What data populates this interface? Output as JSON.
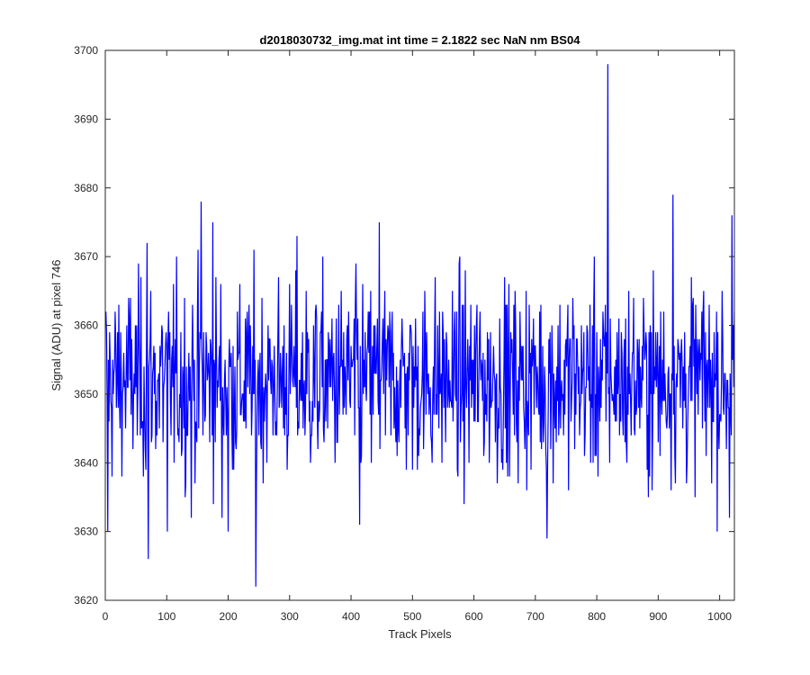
{
  "chart_data": {
    "type": "line",
    "title": "d2018030732_img.mat int time = 2.1822 sec  NaN nm BS04",
    "xlabel": "Track Pixels",
    "ylabel": "Signal (ADU) at pixel 746",
    "xlim": [
      0,
      1024
    ],
    "ylim": [
      3620,
      3700
    ],
    "xticks": [
      0,
      100,
      200,
      300,
      400,
      500,
      600,
      700,
      800,
      900,
      1000
    ],
    "yticks": [
      3620,
      3630,
      3640,
      3650,
      3660,
      3670,
      3680,
      3690,
      3700
    ],
    "grid": false,
    "series": [
      {
        "color": "#0000ff",
        "x_start": 1,
        "x_step": 1,
        "noise": {
          "mean": 3652,
          "std": 7,
          "min": 3626,
          "max": 3679
        },
        "spikes": [
          {
            "x": 1,
            "value": 3662
          },
          {
            "x": 4,
            "value": 3630
          },
          {
            "x": 68,
            "value": 3672
          },
          {
            "x": 70,
            "value": 3626
          },
          {
            "x": 101,
            "value": 3630
          },
          {
            "x": 140,
            "value": 3632
          },
          {
            "x": 156,
            "value": 3678
          },
          {
            "x": 175,
            "value": 3675
          },
          {
            "x": 190,
            "value": 3632
          },
          {
            "x": 200,
            "value": 3630
          },
          {
            "x": 245,
            "value": 3622
          },
          {
            "x": 312,
            "value": 3673
          },
          {
            "x": 414,
            "value": 3631
          },
          {
            "x": 446,
            "value": 3675
          },
          {
            "x": 719,
            "value": 3629
          },
          {
            "x": 818,
            "value": 3698
          },
          {
            "x": 924,
            "value": 3679
          },
          {
            "x": 1016,
            "value": 3632
          },
          {
            "x": 1020,
            "value": 3676
          }
        ]
      }
    ]
  }
}
